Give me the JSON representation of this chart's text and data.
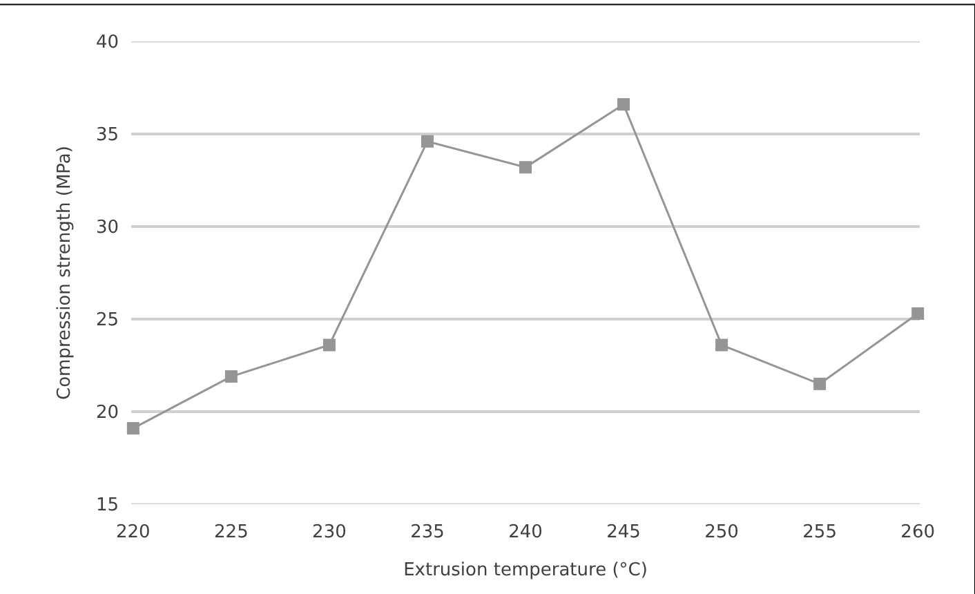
{
  "chart_data": {
    "type": "line",
    "xlabel": "Extrusion temperature (°C)",
    "ylabel": "Compression strength (MPa)",
    "categories": [
      "220",
      "225",
      "230",
      "235",
      "240",
      "245",
      "250",
      "255",
      "260"
    ],
    "series": [
      {
        "color": "#959595",
        "values": [
          19.1,
          21.9,
          23.6,
          34.6,
          33.2,
          36.6,
          23.6,
          21.5,
          25.3
        ]
      }
    ],
    "ylim": [
      15,
      40
    ],
    "yticks": [
      15,
      20,
      25,
      30,
      35,
      40
    ],
    "grid": "y",
    "legend": false,
    "marker": "square",
    "line_style": "solid"
  }
}
